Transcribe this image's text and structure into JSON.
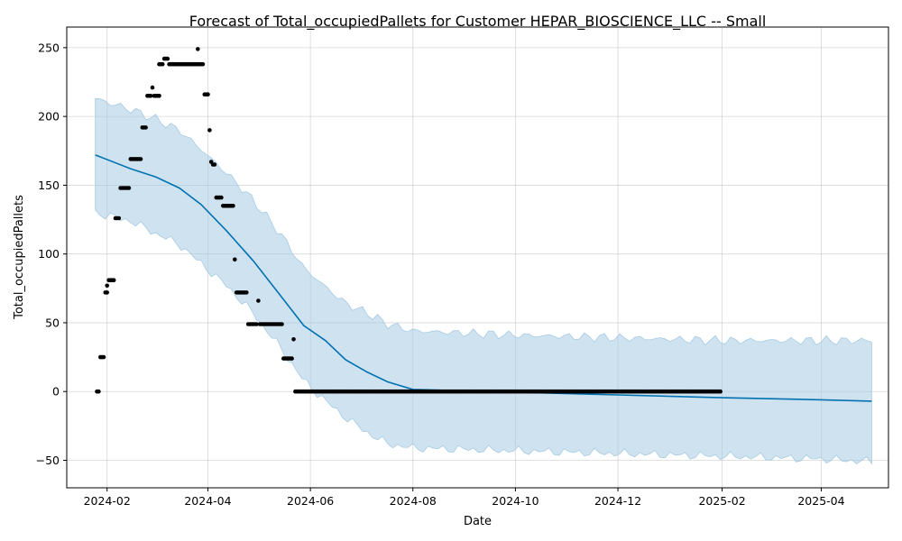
{
  "chart_data": {
    "type": "line",
    "title": "Forecast of Total_occupiedPallets for Customer HEPAR_BIOSCIENCE_LLC -- Small",
    "xlabel": "Date",
    "ylabel": "Total_occupiedPallets",
    "xlim": [
      "2024-01-08",
      "2025-05-11"
    ],
    "ylim": [
      -70,
      265
    ],
    "grid": true,
    "x_ticks": [
      "2024-02-01",
      "2024-04-01",
      "2024-06-01",
      "2024-08-01",
      "2024-10-01",
      "2024-12-01",
      "2025-02-01",
      "2025-04-01"
    ],
    "x_tick_labels": [
      "2024-02",
      "2024-04",
      "2024-06",
      "2024-08",
      "2024-10",
      "2024-12",
      "2025-02",
      "2025-04"
    ],
    "y_ticks": [
      -50,
      0,
      50,
      100,
      150,
      200,
      250
    ],
    "y_tick_labels": [
      "−50",
      "0",
      "50",
      "100",
      "150",
      "200",
      "250"
    ],
    "colors": {
      "forecast": "#0072b2",
      "band": "#a6cbe3",
      "actual": "#000000"
    },
    "series": [
      {
        "kind": "forecast",
        "x": [
          "2024-01-25",
          "2024-02-15",
          "2024-03-01",
          "2024-03-15",
          "2024-03-28",
          "2024-04-12",
          "2024-04-28",
          "2024-05-14",
          "2024-05-28",
          "2024-06-10",
          "2024-06-22",
          "2024-07-05",
          "2024-07-17",
          "2024-08-01",
          "2024-10-01",
          "2024-12-01",
          "2025-02-01",
          "2025-04-01",
          "2025-05-01"
        ],
        "y": [
          172,
          162,
          156,
          148,
          136,
          117,
          95,
          70,
          48,
          37,
          23,
          14,
          7,
          1.5,
          -0.5,
          -2.5,
          -4.5,
          -6,
          -7
        ]
      },
      {
        "kind": "uncertainty_band",
        "x": [
          "2024-01-25",
          "2024-02-15",
          "2024-03-01",
          "2024-03-15",
          "2024-03-28",
          "2024-04-12",
          "2024-04-28",
          "2024-05-14",
          "2024-05-28",
          "2024-06-10",
          "2024-06-22",
          "2024-07-05",
          "2024-07-17",
          "2024-08-01",
          "2024-10-01",
          "2024-12-01",
          "2025-02-01",
          "2025-04-01",
          "2025-05-01"
        ],
        "lower": [
          130,
          124,
          115,
          107,
          93,
          77,
          57,
          32,
          8,
          -7,
          -19,
          -30,
          -38,
          -41,
          -43,
          -45,
          -47,
          -49,
          -51
        ],
        "upper": [
          213,
          205,
          198,
          190,
          176,
          159,
          139,
          115,
          90,
          76,
          64,
          57,
          49,
          44,
          41,
          39,
          37,
          37,
          37
        ]
      },
      {
        "kind": "actual",
        "segments": [
          {
            "from": "2024-01-26",
            "to": "2024-01-27",
            "value": 0
          },
          {
            "from": "2024-01-28",
            "to": "2024-01-30",
            "value": 25
          },
          {
            "from": "2024-01-31",
            "to": "2024-02-01",
            "value": 72
          },
          {
            "from": "2024-02-01",
            "to": "2024-02-01",
            "value": 77
          },
          {
            "from": "2024-02-02",
            "to": "2024-02-05",
            "value": 81
          },
          {
            "from": "2024-02-06",
            "to": "2024-02-08",
            "value": 126
          },
          {
            "from": "2024-02-09",
            "to": "2024-02-14",
            "value": 148
          },
          {
            "from": "2024-02-15",
            "to": "2024-02-21",
            "value": 169
          },
          {
            "from": "2024-02-22",
            "to": "2024-02-24",
            "value": 192
          },
          {
            "from": "2024-02-25",
            "to": "2024-02-27",
            "value": 215
          },
          {
            "from": "2024-02-28",
            "to": "2024-02-28",
            "value": 221
          },
          {
            "from": "2024-02-29",
            "to": "2024-03-03",
            "value": 215
          },
          {
            "from": "2024-03-03",
            "to": "2024-03-05",
            "value": 238
          },
          {
            "from": "2024-03-06",
            "to": "2024-03-08",
            "value": 242
          },
          {
            "from": "2024-03-09",
            "to": "2024-03-29",
            "value": 238
          },
          {
            "from": "2024-03-26",
            "to": "2024-03-26",
            "value": 249
          },
          {
            "from": "2024-03-30",
            "to": "2024-04-01",
            "value": 216
          },
          {
            "from": "2024-04-02",
            "to": "2024-04-02",
            "value": 190
          },
          {
            "from": "2024-04-03",
            "to": "2024-04-03",
            "value": 167
          },
          {
            "from": "2024-04-04",
            "to": "2024-04-05",
            "value": 165
          },
          {
            "from": "2024-04-06",
            "to": "2024-04-09",
            "value": 141
          },
          {
            "from": "2024-04-10",
            "to": "2024-04-16",
            "value": 135
          },
          {
            "from": "2024-04-17",
            "to": "2024-04-17",
            "value": 96
          },
          {
            "from": "2024-04-18",
            "to": "2024-04-24",
            "value": 72
          },
          {
            "from": "2024-04-25",
            "to": "2024-04-30",
            "value": 49
          },
          {
            "from": "2024-05-01",
            "to": "2024-05-01",
            "value": 66
          },
          {
            "from": "2024-05-02",
            "to": "2024-05-15",
            "value": 49
          },
          {
            "from": "2024-05-16",
            "to": "2024-05-21",
            "value": 24
          },
          {
            "from": "2024-05-22",
            "to": "2024-05-22",
            "value": 38
          },
          {
            "from": "2024-05-23",
            "to": "2025-01-31",
            "value": 0
          }
        ]
      }
    ]
  }
}
